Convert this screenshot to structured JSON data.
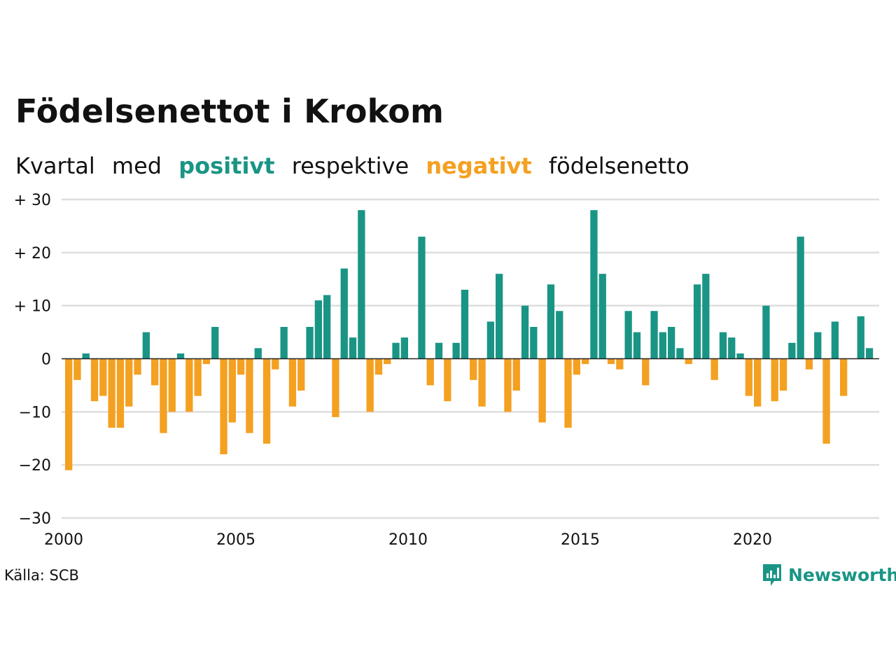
{
  "header": {
    "title": "Födelsenettot i Krokom",
    "subtitle": {
      "part1": "Kvartal",
      "part2": "med",
      "positive_word": "positivt",
      "part3": "respektive",
      "negative_word": "negativt",
      "part4": "födelsenetto"
    }
  },
  "footer": {
    "source": "Källa: SCB",
    "brand": "Newsworthy"
  },
  "colors": {
    "positive": "#1a9585",
    "negative": "#f4a021",
    "grid": "#dedede",
    "text": "#111111",
    "brand": "#1a9585"
  },
  "chart_data": {
    "type": "bar",
    "x_start_year": 2000,
    "periods_per_year": 4,
    "x_ticks": [
      "2000",
      "2005",
      "2010",
      "2015",
      "2020"
    ],
    "y_ticks": [
      "+ 30",
      "+ 20",
      "+ 10",
      "0",
      "−10",
      "−20",
      "−30"
    ],
    "ylim": [
      -30,
      30
    ],
    "grid": true,
    "values": [
      -21,
      -4,
      1,
      -8,
      -7,
      -13,
      -13,
      -9,
      -3,
      5,
      -5,
      -14,
      -10,
      1,
      -10,
      -7,
      -1,
      6,
      -18,
      -12,
      -3,
      -14,
      2,
      -16,
      -2,
      6,
      -9,
      -6,
      6,
      11,
      12,
      -11,
      17,
      4,
      28,
      -10,
      -3,
      -1,
      3,
      4,
      0,
      23,
      -5,
      3,
      -8,
      3,
      13,
      -4,
      -9,
      7,
      16,
      -10,
      -6,
      10,
      6,
      -12,
      14,
      9,
      -13,
      -3,
      -1,
      28,
      16,
      -1,
      -2,
      9,
      5,
      -5,
      9,
      5,
      6,
      2,
      -1,
      14,
      16,
      -4,
      5,
      4,
      1,
      -7,
      -9,
      10,
      -8,
      -6,
      3,
      23,
      -2,
      5,
      -16,
      7,
      -7,
      0,
      8,
      2
    ]
  }
}
